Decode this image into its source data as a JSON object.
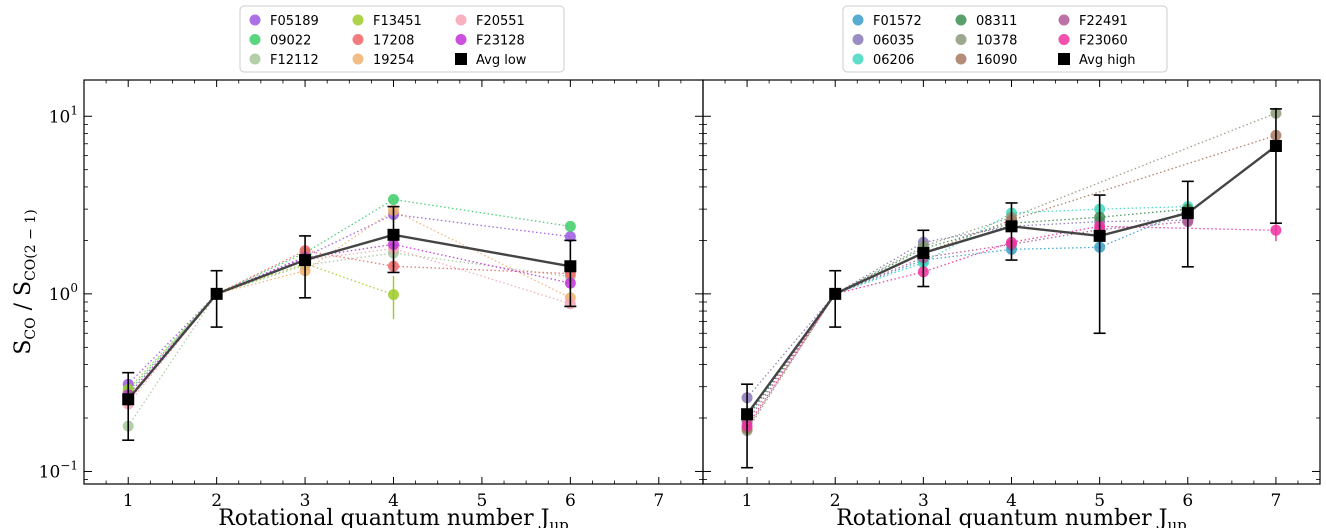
{
  "chart_data": [
    {
      "type": "line",
      "panel": "left",
      "xlabel": "Rotational quantum number J",
      "xlabel_sub": "up",
      "ylabel_parts": [
        "S",
        "CO",
        " / S",
        "CO(2 − 1)"
      ],
      "x_ticks": [
        1,
        2,
        3,
        4,
        5,
        6,
        7
      ],
      "y_scale": "log",
      "ylim": [
        0.085,
        16
      ],
      "xlim": [
        0.5,
        7.5
      ],
      "y_tick_labels": [
        {
          "value": 10,
          "base": "10",
          "exp": "1"
        },
        {
          "value": 1,
          "base": "10",
          "exp": "0"
        },
        {
          "value": 0.1,
          "base": "10",
          "exp": "−1"
        }
      ],
      "legend_position": "top-center",
      "legend_columns": 3,
      "series": [
        {
          "name": "F05189",
          "color": "#9b59e0",
          "x": [
            1,
            2,
            3,
            4,
            6
          ],
          "y": [
            0.31,
            1.0,
            1.62,
            2.8,
            2.1
          ]
        },
        {
          "name": "09022",
          "color": "#3cce6a",
          "x": [
            1,
            2,
            3,
            4,
            6
          ],
          "y": [
            0.28,
            1.0,
            1.7,
            3.4,
            2.4
          ]
        },
        {
          "name": "F12112",
          "color": "#a6c79a",
          "x": [
            1,
            2,
            3,
            4,
            6
          ],
          "y": [
            0.18,
            1.0,
            1.45,
            1.7,
            1.25
          ]
        },
        {
          "name": "F13451",
          "color": "#9ccc2c",
          "x": [
            1,
            2,
            3,
            4
          ],
          "y": [
            0.29,
            1.0,
            1.48,
            0.99
          ],
          "err": [
            0.03,
            0.0,
            0.12,
            0.27
          ]
        },
        {
          "name": "17208",
          "color": "#f26565",
          "x": [
            1,
            2,
            3,
            4,
            6
          ],
          "y": [
            0.25,
            1.0,
            1.75,
            1.43,
            1.3
          ]
        },
        {
          "name": "19254",
          "color": "#f0b070",
          "x": [
            1,
            2,
            3,
            4,
            6
          ],
          "y": [
            0.26,
            1.0,
            1.35,
            2.95,
            0.95
          ]
        },
        {
          "name": "F20551",
          "color": "#f4a6b4",
          "x": [
            1,
            2,
            3,
            4,
            6
          ],
          "y": [
            0.24,
            1.0,
            1.55,
            1.8,
            0.88
          ]
        },
        {
          "name": "F23128",
          "color": "#c430d8",
          "x": [
            1,
            2,
            3,
            4,
            6
          ],
          "y": [
            0.27,
            1.0,
            1.6,
            1.9,
            1.15
          ]
        },
        {
          "name": "Avg low",
          "color": "#000000",
          "marker": "square",
          "x": [
            1,
            2,
            3,
            4,
            6
          ],
          "y": [
            0.255,
            1.0,
            1.55,
            2.15,
            1.43
          ],
          "err_low": [
            0.15,
            0.65,
            0.95,
            1.32,
            0.85
          ],
          "err_high": [
            0.36,
            1.35,
            2.12,
            3.1,
            2.0
          ]
        }
      ]
    },
    {
      "type": "line",
      "panel": "right",
      "xlabel": "Rotational quantum number J",
      "xlabel_sub": "up",
      "x_ticks": [
        1,
        2,
        3,
        4,
        5,
        6,
        7
      ],
      "y_scale": "log",
      "ylim": [
        0.085,
        16
      ],
      "xlim": [
        0.5,
        7.5
      ],
      "legend_position": "top-center",
      "legend_columns": 3,
      "series": [
        {
          "name": "F01572",
          "color": "#3a9ec8",
          "x": [
            1,
            2,
            3,
            4,
            5,
            6
          ],
          "y": [
            0.2,
            1.0,
            1.55,
            1.78,
            1.83,
            2.95
          ]
        },
        {
          "name": "06035",
          "color": "#8a78b8",
          "x": [
            1,
            2,
            3,
            4,
            5,
            6
          ],
          "y": [
            0.26,
            1.0,
            1.95,
            2.4,
            2.55,
            2.6
          ]
        },
        {
          "name": "06206",
          "color": "#40d8c0",
          "x": [
            1,
            2,
            3,
            4,
            5,
            6
          ],
          "y": [
            0.21,
            1.0,
            1.5,
            2.85,
            3.0,
            3.1
          ]
        },
        {
          "name": "08311",
          "color": "#3e8e50",
          "x": [
            1,
            2,
            3,
            4,
            5,
            6
          ],
          "y": [
            0.2,
            1.0,
            1.8,
            2.5,
            2.7,
            3.0
          ]
        },
        {
          "name": "10378",
          "color": "#8c9a7a",
          "x": [
            1,
            2,
            3,
            4,
            7
          ],
          "y": [
            0.17,
            1.0,
            1.85,
            2.7,
            10.4
          ]
        },
        {
          "name": "16090",
          "color": "#a87860",
          "x": [
            1,
            2,
            3,
            4,
            7
          ],
          "y": [
            0.175,
            1.0,
            1.7,
            2.6,
            7.8
          ]
        },
        {
          "name": "F22491",
          "color": "#b05898",
          "x": [
            1,
            2,
            3,
            4,
            5,
            6
          ],
          "y": [
            0.19,
            1.0,
            1.6,
            1.9,
            2.3,
            2.55
          ]
        },
        {
          "name": "F23060",
          "color": "#f030a0",
          "x": [
            1,
            2,
            3,
            4,
            5,
            7
          ],
          "y": [
            0.18,
            1.0,
            1.33,
            1.95,
            2.4,
            2.28
          ],
          "err": [
            0.0,
            0.0,
            0.0,
            0.0,
            0.0,
            0.3
          ]
        },
        {
          "name": "Avg high",
          "color": "#000000",
          "marker": "square",
          "x": [
            1,
            2,
            3,
            4,
            5,
            6,
            7
          ],
          "y": [
            0.21,
            1.0,
            1.7,
            2.4,
            2.12,
            2.85,
            6.8
          ],
          "err_low": [
            0.105,
            0.65,
            1.1,
            1.55,
            0.6,
            1.42,
            2.5
          ],
          "err_high": [
            0.31,
            1.35,
            2.28,
            3.25,
            3.6,
            4.3,
            11.0
          ]
        }
      ]
    }
  ]
}
